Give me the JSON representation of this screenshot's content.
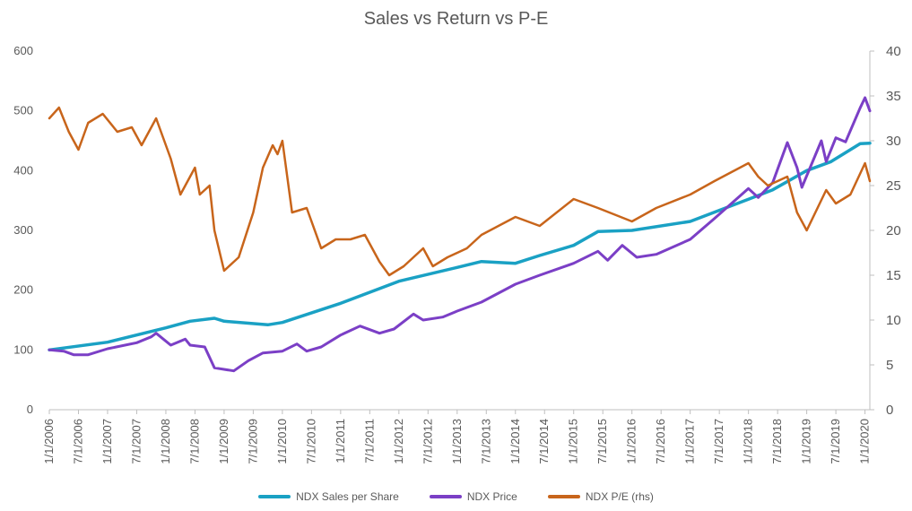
{
  "chart_data": {
    "type": "line",
    "title": "Sales vs Return vs P-E",
    "xlabel": "",
    "ylabel": "",
    "y2label": "",
    "ylim": [
      0,
      600
    ],
    "y2lim": [
      0,
      40
    ],
    "y_ticks": [
      0,
      100,
      200,
      300,
      400,
      500,
      600
    ],
    "y2_ticks": [
      0,
      5,
      10,
      15,
      20,
      25,
      30,
      35,
      40
    ],
    "x_tick_labels": [
      "1/1/2006",
      "7/1/2006",
      "1/1/2007",
      "7/1/2007",
      "1/1/2008",
      "7/1/2008",
      "1/1/2009",
      "7/1/2009",
      "1/1/2010",
      "7/1/2010",
      "1/1/2011",
      "7/1/2011",
      "1/1/2012",
      "7/1/2012",
      "1/1/2013",
      "7/1/2013",
      "1/1/2014",
      "7/1/2014",
      "1/1/2015",
      "7/1/2015",
      "1/1/2016",
      "7/1/2016",
      "1/1/2017",
      "7/1/2017",
      "1/1/2018",
      "7/1/2018",
      "1/1/2019",
      "7/1/2019",
      "1/1/2020"
    ],
    "x_range": [
      "1/1/2006",
      "2/1/2020"
    ],
    "grid": false,
    "legend": "bottom",
    "colors": {
      "sales": "#1aa1c4",
      "price": "#7b3fc6",
      "pe": "#c8651b",
      "axis": "#bfbfbf",
      "text": "#595959"
    },
    "series": [
      {
        "name": "NDX Sales per Share",
        "axis": "left",
        "points": [
          [
            "1/1/2006",
            100
          ],
          [
            "1/1/2007",
            113
          ],
          [
            "1/1/2008",
            137
          ],
          [
            "6/1/2008",
            148
          ],
          [
            "11/1/2008",
            153
          ],
          [
            "1/1/2009",
            148
          ],
          [
            "10/1/2009",
            142
          ],
          [
            "1/1/2010",
            146
          ],
          [
            "1/1/2011",
            178
          ],
          [
            "1/1/2012",
            215
          ],
          [
            "1/1/2013",
            238
          ],
          [
            "6/1/2013",
            248
          ],
          [
            "1/1/2014",
            245
          ],
          [
            "6/1/2014",
            258
          ],
          [
            "1/1/2015",
            275
          ],
          [
            "6/1/2015",
            298
          ],
          [
            "1/1/2016",
            300
          ],
          [
            "1/1/2017",
            315
          ],
          [
            "1/1/2018",
            352
          ],
          [
            "6/1/2018",
            368
          ],
          [
            "1/1/2019",
            400
          ],
          [
            "6/1/2019",
            415
          ],
          [
            "12/1/2019",
            445
          ],
          [
            "2/1/2020",
            446
          ]
        ]
      },
      {
        "name": "NDX Price",
        "axis": "left",
        "points": [
          [
            "1/1/2006",
            100
          ],
          [
            "4/1/2006",
            98
          ],
          [
            "6/1/2006",
            92
          ],
          [
            "9/1/2006",
            92
          ],
          [
            "1/1/2007",
            102
          ],
          [
            "7/1/2007",
            112
          ],
          [
            "10/1/2007",
            122
          ],
          [
            "11/1/2007",
            128
          ],
          [
            "2/1/2008",
            108
          ],
          [
            "5/1/2008",
            118
          ],
          [
            "6/1/2008",
            108
          ],
          [
            "9/1/2008",
            105
          ],
          [
            "11/1/2008",
            70
          ],
          [
            "3/1/2009",
            65
          ],
          [
            "6/1/2009",
            82
          ],
          [
            "9/1/2009",
            95
          ],
          [
            "1/1/2010",
            98
          ],
          [
            "4/1/2010",
            110
          ],
          [
            "6/1/2010",
            98
          ],
          [
            "9/1/2010",
            105
          ],
          [
            "1/1/2011",
            125
          ],
          [
            "5/1/2011",
            140
          ],
          [
            "9/1/2011",
            128
          ],
          [
            "12/1/2011",
            135
          ],
          [
            "4/1/2012",
            160
          ],
          [
            "6/1/2012",
            150
          ],
          [
            "10/1/2012",
            155
          ],
          [
            "1/1/2013",
            165
          ],
          [
            "6/1/2013",
            180
          ],
          [
            "1/1/2014",
            210
          ],
          [
            "6/1/2014",
            225
          ],
          [
            "1/1/2015",
            245
          ],
          [
            "6/1/2015",
            265
          ],
          [
            "8/1/2015",
            250
          ],
          [
            "11/1/2015",
            275
          ],
          [
            "2/1/2016",
            255
          ],
          [
            "6/1/2016",
            260
          ],
          [
            "1/1/2017",
            285
          ],
          [
            "6/1/2017",
            320
          ],
          [
            "1/1/2018",
            370
          ],
          [
            "3/1/2018",
            355
          ],
          [
            "6/1/2018",
            380
          ],
          [
            "9/1/2018",
            447
          ],
          [
            "11/1/2018",
            405
          ],
          [
            "12/1/2018",
            372
          ],
          [
            "4/1/2019",
            450
          ],
          [
            "5/1/2019",
            415
          ],
          [
            "7/1/2019",
            455
          ],
          [
            "9/1/2019",
            448
          ],
          [
            "12/1/2019",
            505
          ],
          [
            "1/1/2020",
            522
          ],
          [
            "2/1/2020",
            500
          ]
        ]
      },
      {
        "name": "NDX P/E (rhs)",
        "axis": "right",
        "points": [
          [
            "1/1/2006",
            32.5
          ],
          [
            "3/1/2006",
            33.7
          ],
          [
            "5/1/2006",
            31
          ],
          [
            "7/1/2006",
            29
          ],
          [
            "9/1/2006",
            32
          ],
          [
            "12/1/2006",
            33
          ],
          [
            "3/1/2007",
            31
          ],
          [
            "6/1/2007",
            31.5
          ],
          [
            "8/1/2007",
            29.5
          ],
          [
            "11/1/2007",
            32.5
          ],
          [
            "2/1/2008",
            28
          ],
          [
            "4/1/2008",
            24
          ],
          [
            "7/1/2008",
            27
          ],
          [
            "8/1/2008",
            24
          ],
          [
            "10/1/2008",
            25
          ],
          [
            "11/1/2008",
            20
          ],
          [
            "1/1/2009",
            15.5
          ],
          [
            "4/1/2009",
            17
          ],
          [
            "7/1/2009",
            22
          ],
          [
            "9/1/2009",
            27
          ],
          [
            "11/1/2009",
            29.5
          ],
          [
            "12/1/2009",
            28.5
          ],
          [
            "1/1/2010",
            30
          ],
          [
            "3/1/2010",
            22
          ],
          [
            "6/1/2010",
            22.5
          ],
          [
            "9/1/2010",
            18
          ],
          [
            "12/1/2010",
            19
          ],
          [
            "3/1/2011",
            19
          ],
          [
            "6/1/2011",
            19.5
          ],
          [
            "9/1/2011",
            16.5
          ],
          [
            "11/1/2011",
            15
          ],
          [
            "2/1/2012",
            16
          ],
          [
            "6/1/2012",
            18
          ],
          [
            "8/1/2012",
            16
          ],
          [
            "11/1/2012",
            17
          ],
          [
            "3/1/2013",
            18
          ],
          [
            "6/1/2013",
            19.5
          ],
          [
            "1/1/2014",
            21.5
          ],
          [
            "6/1/2014",
            20.5
          ],
          [
            "1/1/2015",
            23.5
          ],
          [
            "6/1/2015",
            22.5
          ],
          [
            "1/1/2016",
            21
          ],
          [
            "6/1/2016",
            22.5
          ],
          [
            "1/1/2017",
            24
          ],
          [
            "6/1/2017",
            25.5
          ],
          [
            "1/1/2018",
            27.5
          ],
          [
            "3/1/2018",
            26
          ],
          [
            "5/1/2018",
            25
          ],
          [
            "9/1/2018",
            26
          ],
          [
            "11/1/2018",
            22
          ],
          [
            "1/1/2019",
            20
          ],
          [
            "5/1/2019",
            24.5
          ],
          [
            "7/1/2019",
            23
          ],
          [
            "10/1/2019",
            24
          ],
          [
            "1/1/2020",
            27.5
          ],
          [
            "2/1/2020",
            25.5
          ]
        ]
      }
    ]
  }
}
